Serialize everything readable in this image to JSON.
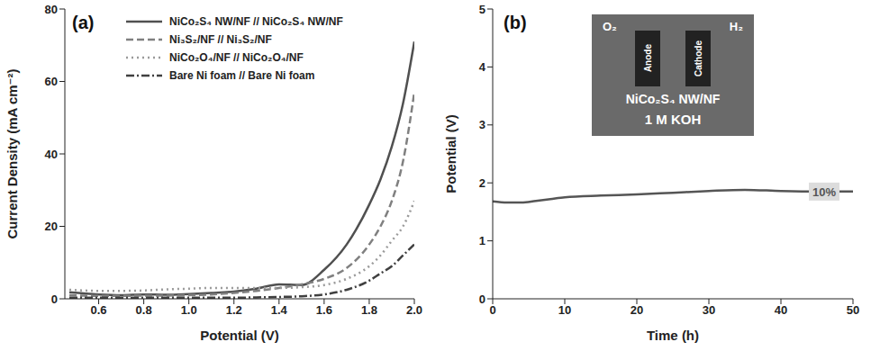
{
  "chart_data": [
    {
      "type": "line",
      "panel_label": "(a)",
      "x_label": "Potential (V)",
      "y_label": "Current Density (mA cm⁻²)",
      "xlim": [
        0.45,
        2.0
      ],
      "xticks": [
        0.6,
        0.8,
        {
          "value": 1,
          "label": "1.0"
        },
        1.2,
        1.4,
        1.6,
        1.8,
        {
          "value": 2,
          "label": "2.0"
        }
      ],
      "ylim": [
        0,
        80
      ],
      "yticks": [
        0,
        20,
        40,
        60,
        80
      ],
      "legend": "upper left",
      "x": [
        0.47,
        0.6,
        0.7,
        0.8,
        0.9,
        1.0,
        1.1,
        1.2,
        1.3,
        1.4,
        1.5,
        1.6,
        1.7,
        1.8,
        1.85,
        1.9,
        1.95,
        2.0
      ],
      "series": [
        {
          "name": "NiCo₂S₄ NW/NF // NiCo₂S₄ NW/NF",
          "color": "#505050",
          "line_style": "solid",
          "values": [
            1.8,
            1.2,
            1.0,
            1.2,
            1.1,
            1.3,
            1.6,
            2.0,
            2.8,
            4.0,
            3.8,
            8,
            15,
            26,
            33,
            42,
            54,
            71
          ]
        },
        {
          "name": "Ni₃S₂/NF // Ni₃S₂/NF",
          "color": "#808080",
          "line_style": "dashed",
          "values": [
            1.0,
            0.8,
            0.8,
            0.9,
            0.9,
            1.0,
            1.2,
            1.6,
            2.2,
            3.0,
            4.0,
            5.5,
            8.5,
            15,
            20,
            27,
            38,
            57
          ]
        },
        {
          "name": "NiCo₂O₄/NF // NiCo₂O₄/NF",
          "color": "#9a9a9a",
          "line_style": "dotted",
          "values": [
            2.5,
            2.2,
            2.2,
            2.3,
            2.6,
            2.8,
            3.0,
            3.0,
            3.0,
            3.0,
            3.2,
            3.8,
            5.5,
            9,
            12,
            16,
            20,
            27
          ]
        },
        {
          "name": "Bare Ni foam // Bare Ni foam",
          "color": "#404040",
          "line_style": "dashdot",
          "values": [
            0.3,
            0.3,
            0.3,
            0.3,
            0.3,
            0.3,
            0.3,
            0.3,
            0.4,
            0.5,
            0.7,
            1.2,
            2.5,
            5,
            7,
            9,
            12,
            15
          ]
        }
      ]
    },
    {
      "type": "line",
      "panel_label": "(b)",
      "x_label": "Time (h)",
      "y_label": "Potential (V)",
      "xlim": [
        0,
        50
      ],
      "xticks": [
        0,
        10,
        20,
        30,
        40,
        50
      ],
      "ylim": [
        0,
        5
      ],
      "yticks": [
        0,
        1,
        2,
        3,
        4,
        5
      ],
      "x": [
        0,
        2,
        4,
        6,
        8,
        10,
        15,
        20,
        25,
        30,
        35,
        40,
        45,
        50
      ],
      "values": [
        1.68,
        1.66,
        1.66,
        1.69,
        1.72,
        1.75,
        1.78,
        1.8,
        1.83,
        1.86,
        1.88,
        1.86,
        1.85,
        1.85
      ],
      "color": "#555555",
      "line_style": "solid",
      "annotations": [
        {
          "text": "10%",
          "x": 46,
          "y": 1.85
        }
      ],
      "inset": {
        "title": "NiCo₂S₄ NW/NF",
        "electrolyte": "1 M KOH",
        "anode": "Anode",
        "cathode": "Cathode",
        "anode_gas": "O₂",
        "cathode_gas": "H₂"
      }
    }
  ]
}
